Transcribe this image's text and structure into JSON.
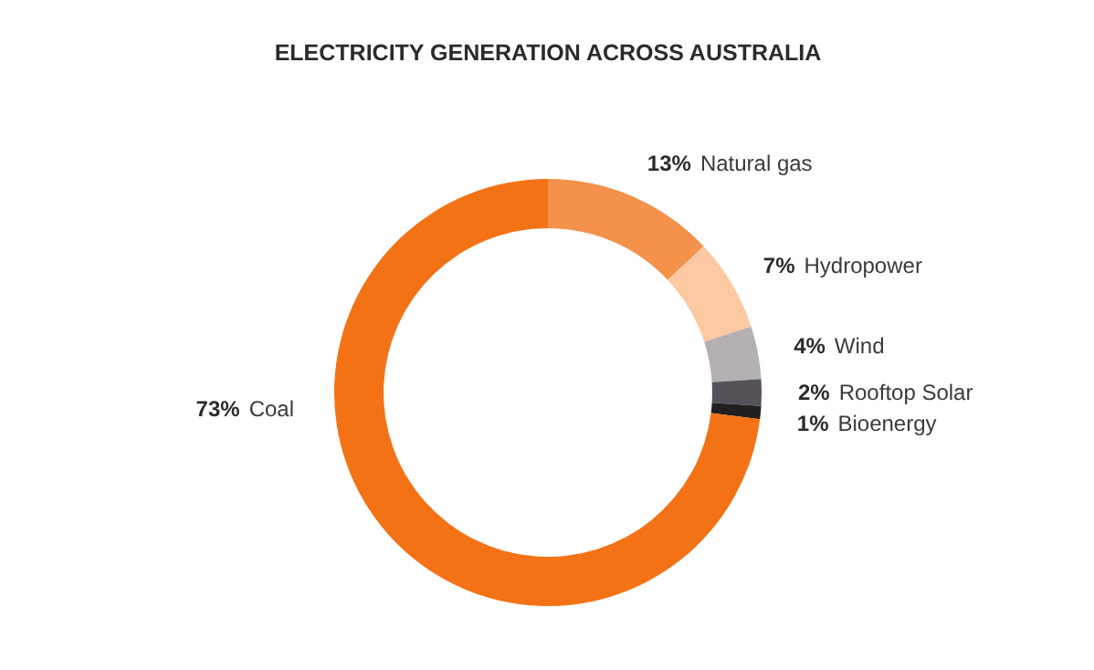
{
  "chart_data": {
    "type": "donut",
    "title": "ELECTRICITY GENERATION ACROSS AUSTRALIA",
    "categories": [
      "Natural gas",
      "Hydropower",
      "Wind",
      "Rooftop Solar",
      "Bioenergy",
      "Coal"
    ],
    "values": [
      13,
      7,
      4,
      2,
      1,
      73
    ],
    "colors": [
      "#f4914a",
      "#fcc9a2",
      "#b3afb2",
      "#57525a",
      "#231f20",
      "#f47216"
    ],
    "value_labels": [
      "13%",
      "7%",
      "4%",
      "2%",
      "1%",
      "73%"
    ],
    "legend": false
  }
}
